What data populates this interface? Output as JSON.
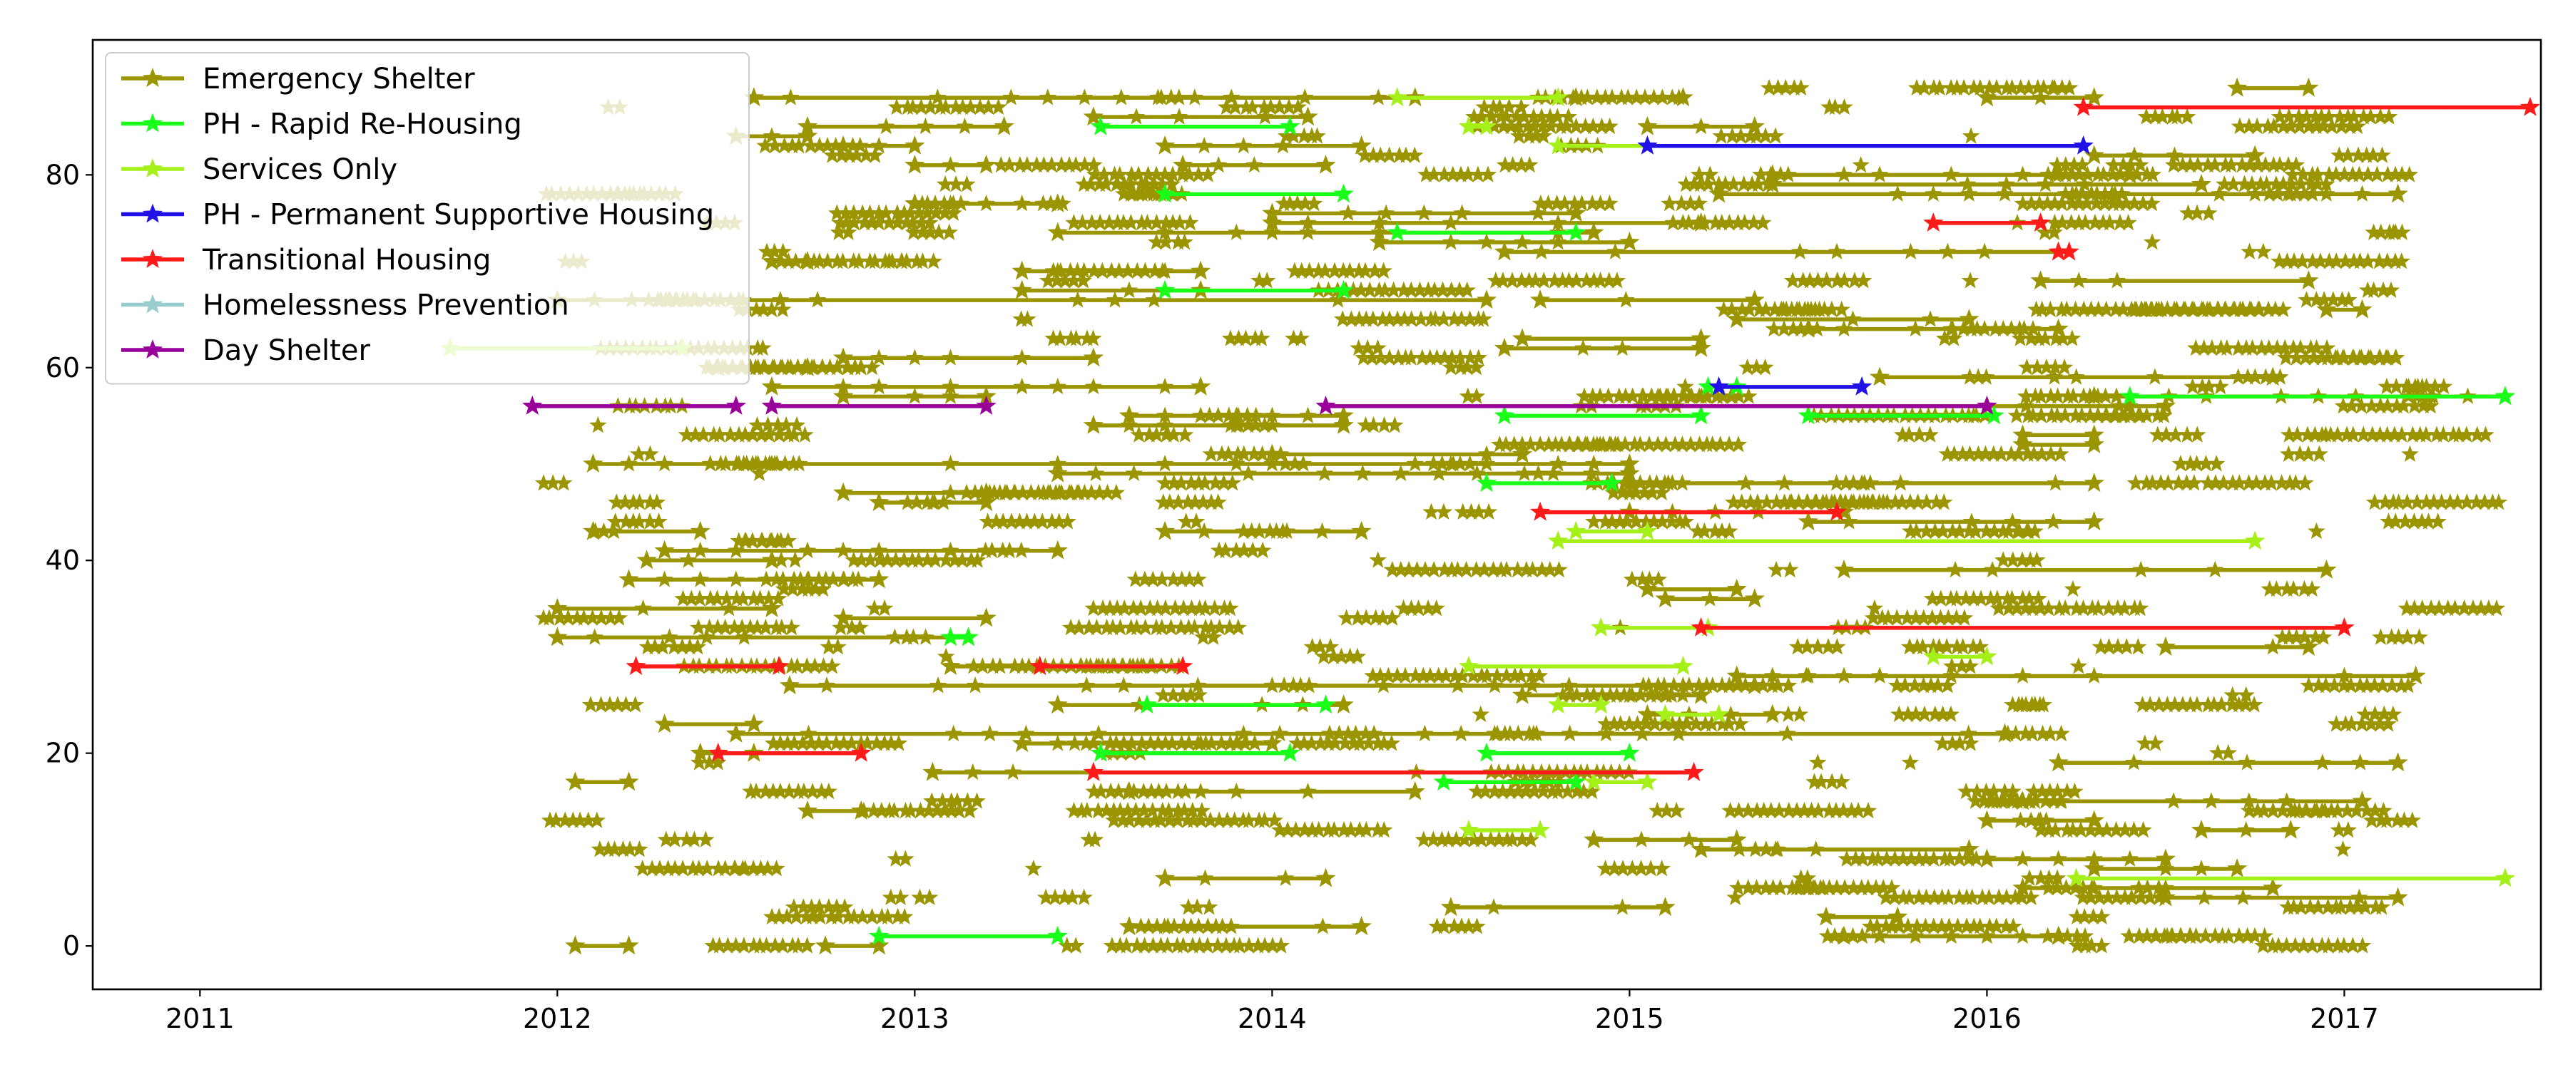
{
  "chart_data": {
    "type": "line",
    "title": "",
    "xlabel": "",
    "ylabel": "",
    "xlim": [
      2010.7,
      2017.55
    ],
    "ylim": [
      -4.5,
      94
    ],
    "x_ticks": [
      2011,
      2012,
      2013,
      2014,
      2015,
      2016,
      2017
    ],
    "x_tick_labels": [
      "2011",
      "2012",
      "2013",
      "2014",
      "2015",
      "2016",
      "2017"
    ],
    "y_ticks": [
      0,
      20,
      40,
      60,
      80
    ],
    "y_tick_labels": [
      "0",
      "20",
      "40",
      "60",
      "80"
    ],
    "grid": false,
    "legend_position": "top-left",
    "marker": "star",
    "series": [
      {
        "name": "Emergency Shelter",
        "color": "#9a9500",
        "segments": [
          {
            "y": 88,
            "x": [
              2012.55,
              2014.4
            ]
          },
          {
            "y": 88,
            "x": [
              2014.85,
              2015.15
            ]
          },
          {
            "y": 88,
            "x": [
              2016.0,
              2016.3
            ]
          },
          {
            "y": 89,
            "x": [
              2016.7,
              2016.9
            ]
          },
          {
            "y": 86,
            "x": [
              2013.5,
              2014.1
            ]
          },
          {
            "y": 85,
            "x": [
              2012.7,
              2013.25
            ]
          },
          {
            "y": 85,
            "x": [
              2015.05,
              2015.35
            ]
          },
          {
            "y": 84,
            "x": [
              2012.5,
              2012.7
            ]
          },
          {
            "y": 83,
            "x": [
              2012.8,
              2013.0
            ]
          },
          {
            "y": 83,
            "x": [
              2013.7,
              2014.25
            ]
          },
          {
            "y": 82,
            "x": [
              2016.3,
              2016.75
            ]
          },
          {
            "y": 81,
            "x": [
              2013.0,
              2013.2
            ]
          },
          {
            "y": 81,
            "x": [
              2013.75,
              2014.15
            ]
          },
          {
            "y": 80,
            "x": [
              2015.4,
              2016.4
            ]
          },
          {
            "y": 79,
            "x": [
              2015.4,
              2016.6
            ]
          },
          {
            "y": 78,
            "x": [
              2015.25,
              2017.15
            ]
          },
          {
            "y": 77,
            "x": [
              2013.0,
              2013.4
            ]
          },
          {
            "y": 76,
            "x": [
              2014.0,
              2014.85
            ]
          },
          {
            "y": 75,
            "x": [
              2014.0,
              2015.2
            ]
          },
          {
            "y": 74,
            "x": [
              2013.4,
              2014.9
            ]
          },
          {
            "y": 73,
            "x": [
              2014.3,
              2015.0
            ]
          },
          {
            "y": 72,
            "x": [
              2014.65,
              2016.2
            ]
          },
          {
            "y": 71,
            "x": [
              2012.6,
              2012.7
            ]
          },
          {
            "y": 70,
            "x": [
              2013.3,
              2013.8
            ]
          },
          {
            "y": 69,
            "x": [
              2016.15,
              2016.9
            ]
          },
          {
            "y": 68,
            "x": [
              2013.3,
              2013.8
            ]
          },
          {
            "y": 67,
            "x": [
              2012.0,
              2014.6
            ]
          },
          {
            "y": 67,
            "x": [
              2014.75,
              2015.35
            ]
          },
          {
            "y": 66,
            "x": [
              2016.95,
              2017.05
            ]
          },
          {
            "y": 65,
            "x": [
              2015.3,
              2015.95
            ]
          },
          {
            "y": 64,
            "x": [
              2015.5,
              2016.2
            ]
          },
          {
            "y": 63,
            "x": [
              2014.7,
              2015.2
            ]
          },
          {
            "y": 62,
            "x": [
              2014.65,
              2015.2
            ]
          },
          {
            "y": 61,
            "x": [
              2012.8,
              2013.5
            ]
          },
          {
            "y": 60,
            "x": [
              2012.45,
              2012.7
            ]
          },
          {
            "y": 59,
            "x": [
              2015.7,
              2016.8
            ]
          },
          {
            "y": 58,
            "x": [
              2012.6,
              2013.8
            ]
          },
          {
            "y": 57,
            "x": [
              2012.8,
              2013.2
            ]
          },
          {
            "y": 57,
            "x": [
              2016.3,
              2017.45
            ]
          },
          {
            "y": 56,
            "x": [
              2016.0,
              2016.5
            ]
          },
          {
            "y": 55,
            "x": [
              2013.6,
              2014.2
            ]
          },
          {
            "y": 54,
            "x": [
              2013.5,
              2014.2
            ]
          },
          {
            "y": 53,
            "x": [
              2016.1,
              2016.3
            ]
          },
          {
            "y": 52,
            "x": [
              2016.1,
              2016.3
            ]
          },
          {
            "y": 51,
            "x": [
              2014.0,
              2014.7
            ]
          },
          {
            "y": 50,
            "x": [
              2012.1,
              2015.0
            ]
          },
          {
            "y": 49,
            "x": [
              2013.4,
              2015.0
            ]
          },
          {
            "y": 48,
            "x": [
              2015.0,
              2016.3
            ]
          },
          {
            "y": 47,
            "x": [
              2012.8,
              2013.2
            ]
          },
          {
            "y": 46,
            "x": [
              2012.9,
              2013.2
            ]
          },
          {
            "y": 45,
            "x": [
              2015.0,
              2015.6
            ]
          },
          {
            "y": 44,
            "x": [
              2015.5,
              2016.3
            ]
          },
          {
            "y": 43,
            "x": [
              2012.1,
              2012.4
            ]
          },
          {
            "y": 43,
            "x": [
              2013.7,
              2014.25
            ]
          },
          {
            "y": 41,
            "x": [
              2012.3,
              2013.4
            ]
          },
          {
            "y": 40,
            "x": [
              2012.25,
              2012.6
            ]
          },
          {
            "y": 39,
            "x": [
              2015.6,
              2016.95
            ]
          },
          {
            "y": 38,
            "x": [
              2012.2,
              2012.9
            ]
          },
          {
            "y": 37,
            "x": [
              2015.05,
              2015.3
            ]
          },
          {
            "y": 36,
            "x": [
              2015.1,
              2015.35
            ]
          },
          {
            "y": 35,
            "x": [
              2012.0,
              2012.6
            ]
          },
          {
            "y": 34,
            "x": [
              2012.8,
              2013.2
            ]
          },
          {
            "y": 32,
            "x": [
              2012.0,
              2013.15
            ]
          },
          {
            "y": 31,
            "x": [
              2016.5,
              2016.9
            ]
          },
          {
            "y": 29,
            "x": [
              2013.1,
              2013.35
            ]
          },
          {
            "y": 28,
            "x": [
              2015.3,
              2017.2
            ]
          },
          {
            "y": 27,
            "x": [
              2012.65,
              2015.35
            ]
          },
          {
            "y": 26,
            "x": [
              2014.7,
              2015.2
            ]
          },
          {
            "y": 25,
            "x": [
              2013.4,
              2014.2
            ]
          },
          {
            "y": 24,
            "x": [
              2015.05,
              2015.4
            ]
          },
          {
            "y": 23,
            "x": [
              2012.3,
              2012.55
            ]
          },
          {
            "y": 22,
            "x": [
              2012.5,
              2016.05
            ]
          },
          {
            "y": 21,
            "x": [
              2013.3,
              2014.0
            ]
          },
          {
            "y": 20,
            "x": [
              2012.4,
              2012.55
            ]
          },
          {
            "y": 19,
            "x": [
              2016.2,
              2017.15
            ]
          },
          {
            "y": 18,
            "x": [
              2013.05,
              2013.5
            ]
          },
          {
            "y": 17,
            "x": [
              2012.05,
              2012.2
            ]
          },
          {
            "y": 16,
            "x": [
              2013.6,
              2014.4
            ]
          },
          {
            "y": 15,
            "x": [
              2016.1,
              2017.05
            ]
          },
          {
            "y": 14,
            "x": [
              2012.7,
              2012.85
            ]
          },
          {
            "y": 13,
            "x": [
              2016.0,
              2016.3
            ]
          },
          {
            "y": 12,
            "x": [
              2016.6,
              2016.85
            ]
          },
          {
            "y": 11,
            "x": [
              2014.9,
              2015.3
            ]
          },
          {
            "y": 10,
            "x": [
              2015.2,
              2015.95
            ]
          },
          {
            "y": 9,
            "x": [
              2016.0,
              2016.5
            ]
          },
          {
            "y": 8,
            "x": [
              2016.3,
              2016.7
            ]
          },
          {
            "y": 7,
            "x": [
              2013.7,
              2014.15
            ]
          },
          {
            "y": 6,
            "x": [
              2016.1,
              2016.8
            ]
          },
          {
            "y": 5,
            "x": [
              2016.5,
              2017.15
            ]
          },
          {
            "y": 4,
            "x": [
              2014.5,
              2015.1
            ]
          },
          {
            "y": 3,
            "x": [
              2015.55,
              2015.75
            ]
          },
          {
            "y": 2,
            "x": [
              2013.6,
              2014.25
            ]
          },
          {
            "y": 1,
            "x": [
              2015.6,
              2016.2
            ]
          },
          {
            "y": 0,
            "x": [
              2012.05,
              2012.2
            ]
          },
          {
            "y": 0,
            "x": [
              2012.75,
              2012.9
            ]
          }
        ]
      },
      {
        "name": "PH - Rapid Re-Housing",
        "color": "#1aff1a",
        "segments": [
          {
            "y": 85,
            "x": [
              2013.52,
              2014.05
            ]
          },
          {
            "y": 78,
            "x": [
              2013.7,
              2014.2
            ]
          },
          {
            "y": 74,
            "x": [
              2014.35,
              2014.85
            ]
          },
          {
            "y": 68,
            "x": [
              2013.7,
              2014.2
            ]
          },
          {
            "y": 58,
            "x": [
              2015.22,
              2015.3
            ]
          },
          {
            "y": 57,
            "x": [
              2016.4,
              2017.45
            ]
          },
          {
            "y": 55,
            "x": [
              2014.65,
              2015.2
            ]
          },
          {
            "y": 55,
            "x": [
              2015.5,
              2016.02
            ]
          },
          {
            "y": 48,
            "x": [
              2014.6,
              2014.95
            ]
          },
          {
            "y": 32,
            "x": [
              2013.1,
              2013.15
            ]
          },
          {
            "y": 25,
            "x": [
              2013.65,
              2014.15
            ]
          },
          {
            "y": 20,
            "x": [
              2013.52,
              2014.05
            ]
          },
          {
            "y": 20,
            "x": [
              2014.6,
              2015.0
            ]
          },
          {
            "y": 17,
            "x": [
              2014.48,
              2014.85
            ]
          },
          {
            "y": 1,
            "x": [
              2012.9,
              2013.4
            ]
          }
        ]
      },
      {
        "name": "Services Only",
        "color": "#a6f01a",
        "segments": [
          {
            "y": 88,
            "x": [
              2014.35,
              2014.8
            ]
          },
          {
            "y": 85,
            "x": [
              2014.55,
              2014.6
            ]
          },
          {
            "y": 83,
            "x": [
              2014.8,
              2015.05
            ]
          },
          {
            "y": 62,
            "x": [
              2011.7,
              2012.35
            ]
          },
          {
            "y": 43,
            "x": [
              2014.85,
              2015.05
            ]
          },
          {
            "y": 42,
            "x": [
              2014.8,
              2016.75
            ]
          },
          {
            "y": 33,
            "x": [
              2014.92,
              2015.22
            ]
          },
          {
            "y": 30,
            "x": [
              2015.85,
              2016.0
            ]
          },
          {
            "y": 29,
            "x": [
              2014.55,
              2015.15
            ]
          },
          {
            "y": 25,
            "x": [
              2014.8,
              2014.92
            ]
          },
          {
            "y": 24,
            "x": [
              2015.1,
              2015.25
            ]
          },
          {
            "y": 17,
            "x": [
              2014.9,
              2015.05
            ]
          },
          {
            "y": 12,
            "x": [
              2014.55,
              2014.75
            ]
          },
          {
            "y": 7,
            "x": [
              2016.25,
              2017.45
            ]
          }
        ]
      },
      {
        "name": "PH - Permanent Supportive Housing",
        "color": "#2211e6",
        "segments": [
          {
            "y": 83,
            "x": [
              2015.05,
              2016.27
            ]
          },
          {
            "y": 58,
            "x": [
              2015.25,
              2015.65
            ]
          }
        ]
      },
      {
        "name": "Transitional Housing",
        "color": "#ff1a1a",
        "segments": [
          {
            "y": 87,
            "x": [
              2016.27,
              2017.52
            ]
          },
          {
            "y": 75,
            "x": [
              2015.85,
              2016.15
            ]
          },
          {
            "y": 72,
            "x": [
              2016.2,
              2016.23
            ]
          },
          {
            "y": 45,
            "x": [
              2014.75,
              2015.58
            ]
          },
          {
            "y": 33,
            "x": [
              2015.2,
              2017.0
            ]
          },
          {
            "y": 29,
            "x": [
              2012.22,
              2012.62
            ]
          },
          {
            "y": 29,
            "x": [
              2013.35,
              2013.75
            ]
          },
          {
            "y": 20,
            "x": [
              2012.45,
              2012.85
            ]
          },
          {
            "y": 18,
            "x": [
              2013.5,
              2015.18
            ]
          }
        ]
      },
      {
        "name": "Homelessness Prevention",
        "color": "#99cccc",
        "segments": []
      },
      {
        "name": "Day Shelter",
        "color": "#990099",
        "segments": [
          {
            "y": 56,
            "x": [
              2011.93,
              2012.5
            ]
          },
          {
            "y": 56,
            "x": [
              2012.6,
              2013.2
            ]
          },
          {
            "y": 56,
            "x": [
              2014.15,
              2016.0
            ]
          }
        ]
      }
    ]
  }
}
